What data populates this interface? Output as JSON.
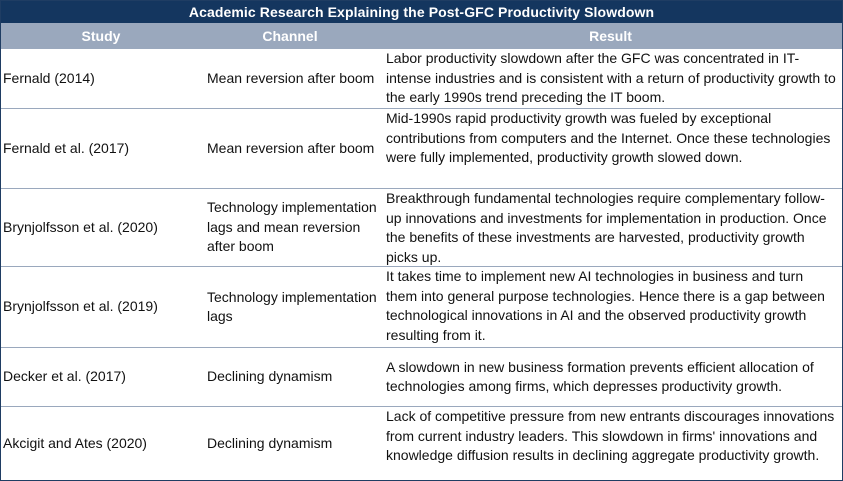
{
  "table": {
    "title": "Academic Research Explaining the Post-GFC Productivity Slowdown",
    "headers": {
      "study": "Study",
      "channel": "Channel",
      "result": "Result"
    },
    "rows": [
      {
        "study": "Fernald (2014)",
        "channel": "Mean reversion after boom",
        "result": "Labor productivity slowdown after the GFC was concentrated in IT-intense industries and is consistent with a return of productivity growth to the early 1990s trend preceding the IT boom."
      },
      {
        "study": "Fernald et al. (2017)",
        "channel": "Mean reversion after boom",
        "result": "Mid-1990s rapid productivity growth was fueled by exceptional contributions from computers and the Internet. Once these technologies were fully implemented, productivity growth slowed down."
      },
      {
        "study": "Brynjolfsson et al. (2020)",
        "channel": "Technology implementation lags and mean reversion after boom",
        "result": "Breakthrough fundamental technologies require complementary follow-up innovations and investments for implementation in production. Once the benefits of these investments are harvested, productivity growth picks up."
      },
      {
        "study": "Brynjolfsson et al. (2019)",
        "channel": "Technology implementation lags",
        "result": "It takes time to implement new AI technologies in business and turn them into general purpose technologies. Hence there is a gap between technological innovations in AI and the observed productivity growth resulting from it."
      },
      {
        "study": "Decker et al. (2017)",
        "channel": "Declining dynamism",
        "result": "A slowdown in new business formation prevents efficient allocation of technologies among firms, which depresses productivity growth."
      },
      {
        "study": "Akcigit and Ates (2020)",
        "channel": "Declining dynamism",
        "result": "Lack of competitive pressure from new entrants discourages innovations from current industry leaders. This slowdown in firms' innovations and knowledge diffusion results in declining aggregate productivity growth."
      }
    ]
  },
  "colors": {
    "title_bg": "#14365f",
    "header_bg": "#9aa8bd",
    "border": "#1f3d63"
  }
}
